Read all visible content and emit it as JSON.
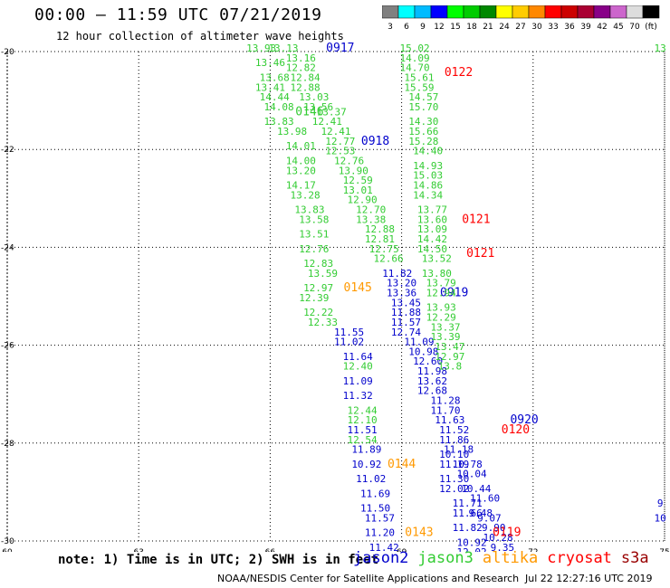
{
  "header": {
    "title": "00:00 – 11:59 UTC 07/21/2019",
    "subtitle": "12 hour collection of altimeter wave heights"
  },
  "scale": {
    "swatches": [
      {
        "color": "#808080",
        "label": "3"
      },
      {
        "color": "#00ffff",
        "label": "6"
      },
      {
        "color": "#00bbff",
        "label": "9"
      },
      {
        "color": "#0000ff",
        "label": "12"
      },
      {
        "color": "#00ff00",
        "label": "15"
      },
      {
        "color": "#00cc00",
        "label": "18"
      },
      {
        "color": "#008800",
        "label": "21"
      },
      {
        "color": "#ffff00",
        "label": "24"
      },
      {
        "color": "#ffcc00",
        "label": "27"
      },
      {
        "color": "#ff8800",
        "label": "30"
      },
      {
        "color": "#ff0000",
        "label": "33"
      },
      {
        "color": "#cc0000",
        "label": "36"
      },
      {
        "color": "#aa0033",
        "label": "39"
      },
      {
        "color": "#880088",
        "label": "42"
      },
      {
        "color": "#cc66cc",
        "label": "45"
      },
      {
        "color": "#dddddd",
        "label": "70"
      },
      {
        "color": "#000000",
        "label": "(ft)"
      }
    ]
  },
  "map": {
    "lon_range": [
      60,
      75
    ],
    "lat_range": [
      -30,
      -20
    ],
    "lon_ticks": [
      "60",
      "63",
      "66",
      "69",
      "72",
      "75"
    ],
    "lat_ticks": [
      "-20",
      "-22",
      "-24",
      "-26",
      "-28",
      "-30"
    ],
    "colors": {
      "jason2": "#0000cc",
      "jason3": "#33cc33",
      "altika": "#ff9900",
      "cryosat": "#ff0000"
    },
    "tracks": [
      {
        "sat": "jason3",
        "label": "0146",
        "label_pos": [
          66.9,
          -21.3
        ],
        "points": [
          [
            65.8,
            -20.0,
            "13.93"
          ],
          [
            66.3,
            -20.0,
            "13.13"
          ],
          [
            66.7,
            -20.2,
            "13.16"
          ],
          [
            66.0,
            -20.3,
            "13.46"
          ],
          [
            66.7,
            -20.4,
            "12.82"
          ],
          [
            66.1,
            -20.6,
            "13.68"
          ],
          [
            66.8,
            -20.6,
            "12.84"
          ],
          [
            66.0,
            -20.8,
            "13.41"
          ],
          [
            66.8,
            -20.8,
            "12.88"
          ],
          [
            66.1,
            -21.0,
            "14.44"
          ],
          [
            67.0,
            -21.0,
            "13.03"
          ],
          [
            66.2,
            -21.2,
            "14.08"
          ],
          [
            67.1,
            -21.2,
            "13.56"
          ],
          [
            67.4,
            -21.3,
            "13.37"
          ],
          [
            66.2,
            -21.5,
            "13.83"
          ],
          [
            67.3,
            -21.5,
            "12.41"
          ],
          [
            66.5,
            -21.7,
            "13.98"
          ],
          [
            67.5,
            -21.7,
            "12.41"
          ],
          [
            66.7,
            -22.0,
            "14.01"
          ],
          [
            67.6,
            -21.9,
            "12.77"
          ],
          [
            67.6,
            -22.1,
            "12.53"
          ],
          [
            66.7,
            -22.3,
            "14.00"
          ],
          [
            67.8,
            -22.3,
            "12.76"
          ],
          [
            66.7,
            -22.5,
            "13.20"
          ],
          [
            67.9,
            -22.5,
            "13.90"
          ],
          [
            66.7,
            -22.8,
            "14.17"
          ],
          [
            68.0,
            -22.7,
            "12.59"
          ],
          [
            68.0,
            -22.9,
            "13.01"
          ],
          [
            66.8,
            -23.0,
            "13.28"
          ],
          [
            68.1,
            -23.1,
            "12.90"
          ],
          [
            66.9,
            -23.3,
            "13.83"
          ],
          [
            68.3,
            -23.3,
            "12.70"
          ],
          [
            67.0,
            -23.5,
            "13.58"
          ],
          [
            68.3,
            -23.5,
            "13.38"
          ],
          [
            68.5,
            -23.7,
            "12.88"
          ],
          [
            67.0,
            -23.8,
            "13.51"
          ],
          [
            68.5,
            -23.9,
            "12.81"
          ],
          [
            67.0,
            -24.1,
            "12.76"
          ],
          [
            68.6,
            -24.1,
            "12.75"
          ],
          [
            68.7,
            -24.3,
            "12.66"
          ],
          [
            67.1,
            -24.4,
            "12.83"
          ],
          [
            67.2,
            -24.6,
            "13.59"
          ],
          [
            67.1,
            -24.9,
            "12.97"
          ],
          [
            67.0,
            -25.1,
            "12.39"
          ],
          [
            67.1,
            -25.4,
            "12.22"
          ],
          [
            67.2,
            -25.6,
            "12.33"
          ]
        ]
      },
      {
        "sat": "altika",
        "label": "0145",
        "label_pos": [
          68.0,
          -24.9
        ],
        "points": []
      },
      {
        "sat": "jason2",
        "label": "0917",
        "label_pos": [
          67.6,
          -20.0
        ],
        "points": []
      },
      {
        "sat": "jason2",
        "label": "0918",
        "label_pos": [
          68.4,
          -21.9
        ],
        "points": []
      },
      {
        "sat": "jason2",
        "label": "0919",
        "label_pos": [
          70.2,
          -25.0
        ],
        "points": [
          [
            68.9,
            -24.6,
            "11.82"
          ],
          [
            69.0,
            -24.8,
            "13.20"
          ],
          [
            69.0,
            -25.0,
            "13.36"
          ],
          [
            69.1,
            -25.2,
            "13.45"
          ],
          [
            69.1,
            -25.4,
            "11.88"
          ],
          [
            69.1,
            -25.6,
            "11.57"
          ],
          [
            69.1,
            -25.8,
            "12.74"
          ],
          [
            69.4,
            -26.0,
            "11.09"
          ],
          [
            69.5,
            -26.2,
            "10.98"
          ],
          [
            69.6,
            -26.4,
            "12.60"
          ],
          [
            69.7,
            -26.6,
            "11.98"
          ],
          [
            69.7,
            -26.8,
            "13.62"
          ],
          [
            69.7,
            -27.0,
            "12.68"
          ],
          [
            70.0,
            -27.2,
            "11.28"
          ],
          [
            70.0,
            -27.4,
            "11.70"
          ],
          [
            70.1,
            -27.6,
            "11.63"
          ],
          [
            70.2,
            -27.8,
            "11.52"
          ],
          [
            70.2,
            -28.0,
            "11.86"
          ],
          [
            70.3,
            -28.2,
            "11.18"
          ],
          [
            70.2,
            -28.3,
            "10.10"
          ],
          [
            70.2,
            -28.5,
            "11.19"
          ],
          [
            70.5,
            -28.5,
            "10.78"
          ],
          [
            70.2,
            -28.8,
            "11.30"
          ],
          [
            70.6,
            -28.7,
            "10.04"
          ],
          [
            70.2,
            -29.0,
            "12.02"
          ],
          [
            70.7,
            -29.0,
            "10.44"
          ],
          [
            70.5,
            -29.3,
            "11.71"
          ],
          [
            70.9,
            -29.2,
            "11.60"
          ],
          [
            70.8,
            -29.5,
            "9.48"
          ],
          [
            70.5,
            -29.5,
            "11.66"
          ],
          [
            71.0,
            -29.6,
            "9.07"
          ],
          [
            70.5,
            -29.8,
            "11.82"
          ],
          [
            71.1,
            -29.8,
            "9.90"
          ],
          [
            70.6,
            -30.1,
            "10.92"
          ],
          [
            71.2,
            -30.0,
            "10.28"
          ],
          [
            70.6,
            -30.3,
            "12.02"
          ],
          [
            71.3,
            -30.2,
            "9.35"
          ],
          [
            70.6,
            -30.5,
            "11.40"
          ],
          [
            71.4,
            -30.4,
            "9.28"
          ]
        ]
      },
      {
        "sat": "jason3",
        "label": "",
        "label_pos": [
          0,
          0
        ],
        "points": [
          [
            69.3,
            -20.0,
            "15.02"
          ],
          [
            69.3,
            -20.2,
            "14.09"
          ],
          [
            69.3,
            -20.4,
            "14.70"
          ],
          [
            69.4,
            -20.6,
            "15.61"
          ],
          [
            69.4,
            -20.8,
            "15.59"
          ],
          [
            69.5,
            -21.0,
            "14.57"
          ],
          [
            69.5,
            -21.2,
            "15.70"
          ],
          [
            69.5,
            -21.5,
            "14.30"
          ],
          [
            69.5,
            -21.7,
            "15.66"
          ],
          [
            69.5,
            -21.9,
            "15.28"
          ],
          [
            69.6,
            -22.1,
            "14.40"
          ],
          [
            69.6,
            -22.4,
            "14.93"
          ],
          [
            69.6,
            -22.6,
            "15.03"
          ],
          [
            69.6,
            -22.8,
            "14.86"
          ],
          [
            69.6,
            -23.0,
            "14.34"
          ],
          [
            69.7,
            -23.3,
            "13.77"
          ],
          [
            69.7,
            -23.5,
            "13.60"
          ],
          [
            69.7,
            -23.7,
            "13.09"
          ],
          [
            69.7,
            -23.9,
            "14.42"
          ],
          [
            69.7,
            -24.1,
            "14.50"
          ],
          [
            69.8,
            -24.3,
            "13.52"
          ],
          [
            69.8,
            -24.6,
            "13.80"
          ],
          [
            69.9,
            -24.8,
            "13.79"
          ],
          [
            69.9,
            -25.0,
            "12.94"
          ],
          [
            69.9,
            -25.3,
            "13.93"
          ],
          [
            69.9,
            -25.5,
            "12.29"
          ],
          [
            70.0,
            -25.7,
            "13.37"
          ],
          [
            70.0,
            -25.9,
            "13.39"
          ],
          [
            70.1,
            -26.1,
            "13.47"
          ],
          [
            70.1,
            -26.3,
            "12.97"
          ],
          [
            70.1,
            -26.5,
            "13.8"
          ]
        ]
      },
      {
        "sat": "cryosat",
        "label": "0122",
        "label_pos": [
          70.3,
          -20.5
        ],
        "points": []
      },
      {
        "sat": "cryosat",
        "label": "0121",
        "label_pos": [
          70.7,
          -23.5
        ],
        "points": []
      },
      {
        "sat": "cryosat",
        "label": "0121",
        "label_pos": [
          70.8,
          -24.2
        ],
        "points": []
      },
      {
        "sat": "jason2",
        "label": "0920",
        "label_pos": [
          71.8,
          -27.6
        ],
        "points": []
      },
      {
        "sat": "cryosat",
        "label": "0120",
        "label_pos": [
          71.6,
          -27.8
        ],
        "points": []
      },
      {
        "sat": "jason2",
        "label": "",
        "label_pos": [
          0,
          0
        ],
        "points": [
          [
            67.8,
            -25.8,
            "11.55"
          ],
          [
            67.8,
            -26.0,
            "11.02"
          ],
          [
            68.0,
            -26.3,
            "11.64"
          ],
          [
            68.0,
            -26.8,
            "11.09"
          ],
          [
            68.0,
            -27.1,
            "11.32"
          ],
          [
            68.1,
            -27.8,
            "11.51"
          ],
          [
            68.2,
            -28.2,
            "11.89"
          ],
          [
            68.2,
            -28.5,
            "10.92"
          ],
          [
            68.3,
            -28.8,
            "11.02"
          ],
          [
            68.4,
            -29.1,
            "11.69"
          ],
          [
            68.4,
            -29.4,
            "11.50"
          ],
          [
            68.5,
            -29.6,
            "11.57"
          ],
          [
            68.5,
            -29.9,
            "11.20"
          ],
          [
            68.6,
            -30.2,
            "11.42"
          ]
        ]
      },
      {
        "sat": "jason3",
        "label": "",
        "label_pos": [
          0,
          0
        ],
        "points": [
          [
            68.0,
            -26.5,
            "12.40"
          ],
          [
            68.1,
            -27.4,
            "12.44"
          ],
          [
            68.1,
            -27.6,
            "12.10"
          ],
          [
            68.1,
            -28.0,
            "12.54"
          ]
        ]
      },
      {
        "sat": "altika",
        "label": "0144",
        "label_pos": [
          69.0,
          -28.5
        ],
        "points": []
      },
      {
        "sat": "altika",
        "label": "0143",
        "label_pos": [
          69.4,
          -29.9
        ],
        "points": []
      },
      {
        "sat": "cryosat",
        "label": "0119",
        "label_pos": [
          71.4,
          -29.9
        ],
        "points": []
      },
      {
        "sat": "jason3",
        "label": "",
        "label_pos": [
          0,
          0
        ],
        "points": [
          [
            74.9,
            -20.0,
            "13"
          ]
        ]
      },
      {
        "sat": "jason2",
        "label": "",
        "label_pos": [
          0,
          0
        ],
        "points": [
          [
            74.9,
            -29.3,
            "9"
          ],
          [
            74.9,
            -29.6,
            "10"
          ]
        ]
      }
    ]
  },
  "footer": {
    "note": "note: 1) Time is in UTC; 2) SWH is in feet",
    "legend": [
      {
        "name": "jason2",
        "color": "#0000cc"
      },
      {
        "name": "jason3",
        "color": "#33cc33"
      },
      {
        "name": "altika",
        "color": "#ff9900"
      },
      {
        "name": "cryosat",
        "color": "#ff0000"
      },
      {
        "name": "s3a",
        "color": "#990000"
      }
    ],
    "credit": "NOAA/NESDIS Center for Satellite Applications and Research",
    "stamp": "Jul 22 12:27:16 UTC 2019"
  }
}
